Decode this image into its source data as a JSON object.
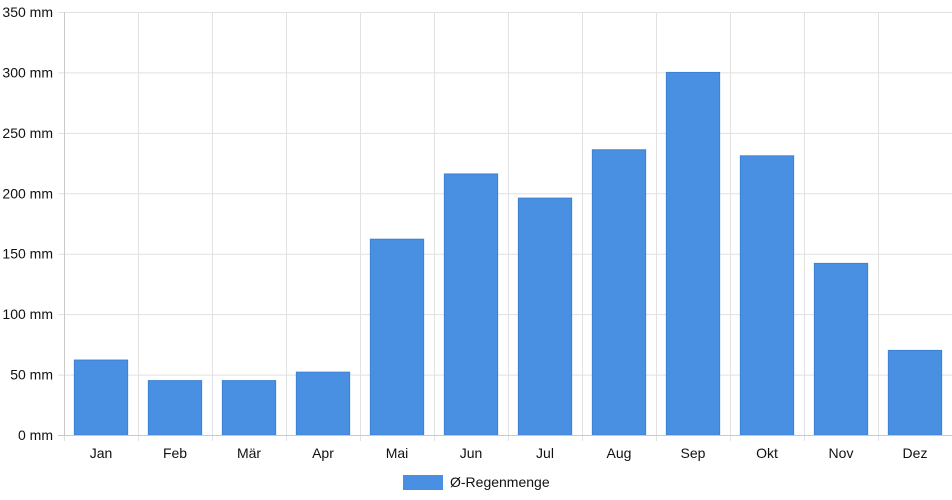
{
  "chart_data": {
    "type": "bar",
    "categories": [
      "Jan",
      "Feb",
      "Mär",
      "Apr",
      "Mai",
      "Jun",
      "Jul",
      "Aug",
      "Sep",
      "Okt",
      "Nov",
      "Dez"
    ],
    "series": [
      {
        "name": "Ø-Regenmenge",
        "values": [
          62,
          45,
          45,
          52,
          162,
          216,
          196,
          236,
          300,
          231,
          142,
          70
        ],
        "color": "#4a90e2"
      }
    ],
    "ylim": [
      0,
      350
    ],
    "yticks": [
      0,
      50,
      100,
      150,
      200,
      250,
      300,
      350
    ],
    "ytick_labels": [
      "0 mm",
      "50 mm",
      "100 mm",
      "150 mm",
      "200 mm",
      "250 mm",
      "300 mm",
      "350 mm"
    ],
    "grid": true,
    "legend_position": "bottom-center"
  }
}
